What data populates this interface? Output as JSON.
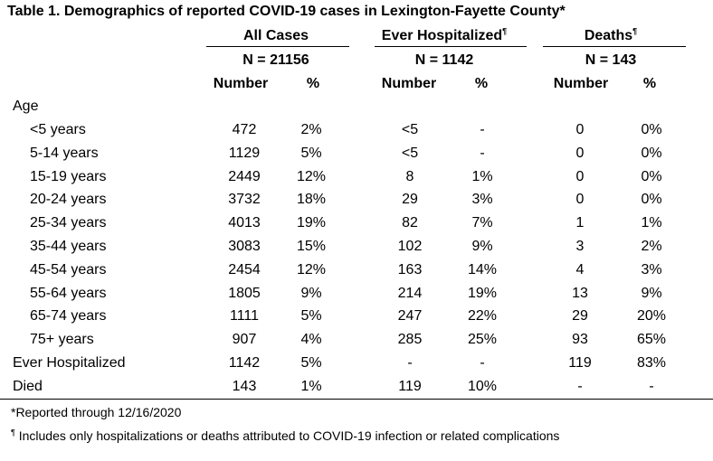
{
  "title": "Table 1. Demographics of reported COVID-19 cases in Lexington-Fayette County*",
  "groups": [
    {
      "label": "All Cases",
      "mark": "",
      "n": "N = 21156"
    },
    {
      "label": "Ever Hospitalized",
      "mark": "¶",
      "n": "N = 1142"
    },
    {
      "label": "Deaths",
      "mark": "¶",
      "n": "N = 143"
    }
  ],
  "subheaders": [
    "Number",
    "%",
    "Number",
    "%",
    "Number",
    "%"
  ],
  "section_label": "Age",
  "rows": [
    {
      "label": "<5 years",
      "cells": [
        "472",
        "2%",
        "<5",
        "-",
        "0",
        "0%"
      ]
    },
    {
      "label": "5-14 years",
      "cells": [
        "1129",
        "5%",
        "<5",
        "-",
        "0",
        "0%"
      ]
    },
    {
      "label": "15-19 years",
      "cells": [
        "2449",
        "12%",
        "8",
        "1%",
        "0",
        "0%"
      ]
    },
    {
      "label": "20-24 years",
      "cells": [
        "3732",
        "18%",
        "29",
        "3%",
        "0",
        "0%"
      ]
    },
    {
      "label": "25-34 years",
      "cells": [
        "4013",
        "19%",
        "82",
        "7%",
        "1",
        "1%"
      ]
    },
    {
      "label": "35-44 years",
      "cells": [
        "3083",
        "15%",
        "102",
        "9%",
        "3",
        "2%"
      ]
    },
    {
      "label": "45-54 years",
      "cells": [
        "2454",
        "12%",
        "163",
        "14%",
        "4",
        "3%"
      ]
    },
    {
      "label": "55-64 years",
      "cells": [
        "1805",
        "9%",
        "214",
        "19%",
        "13",
        "9%"
      ]
    },
    {
      "label": "65-74 years",
      "cells": [
        "1111",
        "5%",
        "247",
        "22%",
        "29",
        "20%"
      ]
    },
    {
      "label": "75+ years",
      "cells": [
        "907",
        "4%",
        "285",
        "25%",
        "93",
        "65%"
      ]
    },
    {
      "label": "Ever Hospitalized",
      "cells": [
        "1142",
        "5%",
        "-",
        "-",
        "119",
        "83%"
      ]
    },
    {
      "label": "Died",
      "cells": [
        "143",
        "1%",
        "119",
        "10%",
        "-",
        "-"
      ]
    }
  ],
  "footnotes": [
    {
      "mark": "",
      "text": "*Reported through 12/16/2020"
    },
    {
      "mark": "¶",
      "text": " Includes only hospitalizations or deaths attributed to COVID-19 infection or related complications"
    }
  ]
}
